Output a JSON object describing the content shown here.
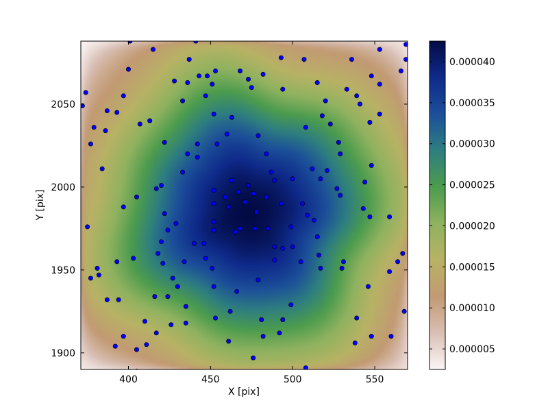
{
  "chart_data": {
    "type": "heatmap",
    "title": "",
    "xlabel": "X [pix]",
    "ylabel": "Y [pix]",
    "xlim": [
      371,
      570
    ],
    "ylim": [
      1890,
      2088
    ],
    "xticks": [
      400,
      450,
      500,
      550
    ],
    "yticks": [
      1900,
      1950,
      2000,
      2050
    ],
    "colorbar": {
      "ticks": [
        "0.000005",
        "0.000010",
        "0.000015",
        "0.000020",
        "0.000025",
        "0.000030",
        "0.000035",
        "0.000040"
      ],
      "tick_values": [
        5e-06,
        1e-05,
        1.5e-05,
        2e-05,
        2.5e-05,
        3e-05,
        3.5e-05,
        4e-05
      ],
      "range": [
        2.5e-06,
        4.25e-05
      ],
      "colormap": "gist_earth_r",
      "stops": [
        "#fbf6f6",
        "#d9bfb4",
        "#c29a73",
        "#b8b265",
        "#8fb25f",
        "#4c9c4e",
        "#2e7e80",
        "#1c4f99",
        "#0f2a8a",
        "#030b45"
      ]
    },
    "field": {
      "peak": {
        "x": 473,
        "y": 1984,
        "value": 4.25e-05
      },
      "background": 5e-06
    },
    "series": [
      {
        "type": "scatter",
        "marker_color": "#0000ff",
        "points": [
          [
            401,
            2088
          ],
          [
            441,
            2088
          ],
          [
            569,
            2086
          ],
          [
            415,
            2083
          ],
          [
            553,
            2083
          ],
          [
            493,
            2078
          ],
          [
            437,
            2077
          ],
          [
            507,
            2077
          ],
          [
            536,
            2077
          ],
          [
            569,
            2077
          ],
          [
            400,
            2071
          ],
          [
            453,
            2070
          ],
          [
            468,
            2070
          ],
          [
            566,
            2070
          ],
          [
            443,
            2067
          ],
          [
            448,
            2067
          ],
          [
            482,
            2068
          ],
          [
            473,
            2065
          ],
          [
            548,
            2067
          ],
          [
            428,
            2064
          ],
          [
            436,
            2063
          ],
          [
            451,
            2062
          ],
          [
            515,
            2063
          ],
          [
            553,
            2062
          ],
          [
            374,
            2057
          ],
          [
            475,
            2060
          ],
          [
            494,
            2059
          ],
          [
            533,
            2059
          ],
          [
            397,
            2055
          ],
          [
            447,
            2055
          ],
          [
            539,
            2055
          ],
          [
            433,
            2052
          ],
          [
            520,
            2052
          ],
          [
            372,
            2049
          ],
          [
            541,
            2050
          ],
          [
            387,
            2046
          ],
          [
            393,
            2045
          ],
          [
            452,
            2044
          ],
          [
            518,
            2043
          ],
          [
            553,
            2044
          ],
          [
            463,
            2042
          ],
          [
            413,
            2040
          ],
          [
            547,
            2039
          ],
          [
            407,
            2038
          ],
          [
            523,
            2038
          ],
          [
            379,
            2036
          ],
          [
            508,
            2036
          ],
          [
            386,
            2034
          ],
          [
            460,
            2032
          ],
          [
            479,
            2031
          ],
          [
            377,
            2026
          ],
          [
            422,
            2027
          ],
          [
            442,
            2026
          ],
          [
            454,
            2026
          ],
          [
            528,
            2027
          ],
          [
            436,
            2020
          ],
          [
            484,
            2020
          ],
          [
            529,
            2020
          ],
          [
            442,
            2018
          ],
          [
            548,
            2013
          ],
          [
            384,
            2011
          ],
          [
            512,
            2011
          ],
          [
            521,
            2010
          ],
          [
            433,
            2009
          ],
          [
            487,
            2009
          ],
          [
            517,
            2005
          ],
          [
            463,
            2004
          ],
          [
            489,
            2004
          ],
          [
            500,
            2005
          ],
          [
            420,
            2001
          ],
          [
            473,
            2001
          ],
          [
            544,
            2003
          ],
          [
            417,
            1999
          ],
          [
            527,
            1999
          ],
          [
            452,
            1998
          ],
          [
            467,
            1997
          ],
          [
            476,
            1996
          ],
          [
            459,
            1994
          ],
          [
            484,
            1994
          ],
          [
            405,
            1994
          ],
          [
            529,
            1995
          ],
          [
            471,
            1991
          ],
          [
            452,
            1990
          ],
          [
            493,
            1990
          ],
          [
            506,
            1990
          ],
          [
            397,
            1988
          ],
          [
            461,
            1988
          ],
          [
            543,
            1987
          ],
          [
            478,
            1985
          ],
          [
            422,
            1984
          ],
          [
            509,
            1983
          ],
          [
            547,
            1982
          ],
          [
            559,
            1982
          ],
          [
            513,
            1980
          ],
          [
            452,
            1979
          ],
          [
            375,
            1976
          ],
          [
            429,
            1978
          ],
          [
            499,
            1976
          ],
          [
            468,
            1975
          ],
          [
            477,
            1975
          ],
          [
            485,
            1975
          ],
          [
            424,
            1974
          ],
          [
            452,
            1974
          ],
          [
            465,
            1973
          ],
          [
            515,
            1970
          ],
          [
            420,
            1967
          ],
          [
            440,
            1966
          ],
          [
            446,
            1966
          ],
          [
            489,
            1964
          ],
          [
            500,
            1964
          ],
          [
            494,
            1963
          ],
          [
            418,
            1960
          ],
          [
            516,
            1959
          ],
          [
            447,
            1957
          ],
          [
            403,
            1957
          ],
          [
            489,
            1956
          ],
          [
            393,
            1955
          ],
          [
            421,
            1954
          ],
          [
            434,
            1955
          ],
          [
            505,
            1955
          ],
          [
            531,
            1955
          ],
          [
            564,
            1955
          ],
          [
            567,
            1960
          ],
          [
            381,
            1951
          ],
          [
            451,
            1951
          ],
          [
            517,
            1951
          ],
          [
            530,
            1951
          ],
          [
            382,
            1947
          ],
          [
            559,
            1949
          ],
          [
            377,
            1945
          ],
          [
            427,
            1945
          ],
          [
            479,
            1944
          ],
          [
            430,
            1940
          ],
          [
            452,
            1940
          ],
          [
            546,
            1940
          ],
          [
            466,
            1937
          ],
          [
            424,
            1934
          ],
          [
            416,
            1934
          ],
          [
            387,
            1932
          ],
          [
            394,
            1932
          ],
          [
            499,
            1929
          ],
          [
            435,
            1928
          ],
          [
            462,
            1925
          ],
          [
            568,
            1925
          ],
          [
            453,
            1921
          ],
          [
            494,
            1920
          ],
          [
            539,
            1921
          ],
          [
            410,
            1919
          ],
          [
            435,
            1918
          ],
          [
            481,
            1920
          ],
          [
            426,
            1917
          ],
          [
            417,
            1912
          ],
          [
            492,
            1912
          ],
          [
            548,
            1910
          ],
          [
            397,
            1910
          ],
          [
            482,
            1910
          ],
          [
            560,
            1910
          ],
          [
            411,
            1905
          ],
          [
            538,
            1906
          ],
          [
            392,
            1904
          ],
          [
            461,
            1907
          ],
          [
            405,
            1902
          ],
          [
            476,
            1897
          ],
          [
            508,
            1891
          ],
          [
            405,
            1889
          ]
        ]
      }
    ]
  }
}
